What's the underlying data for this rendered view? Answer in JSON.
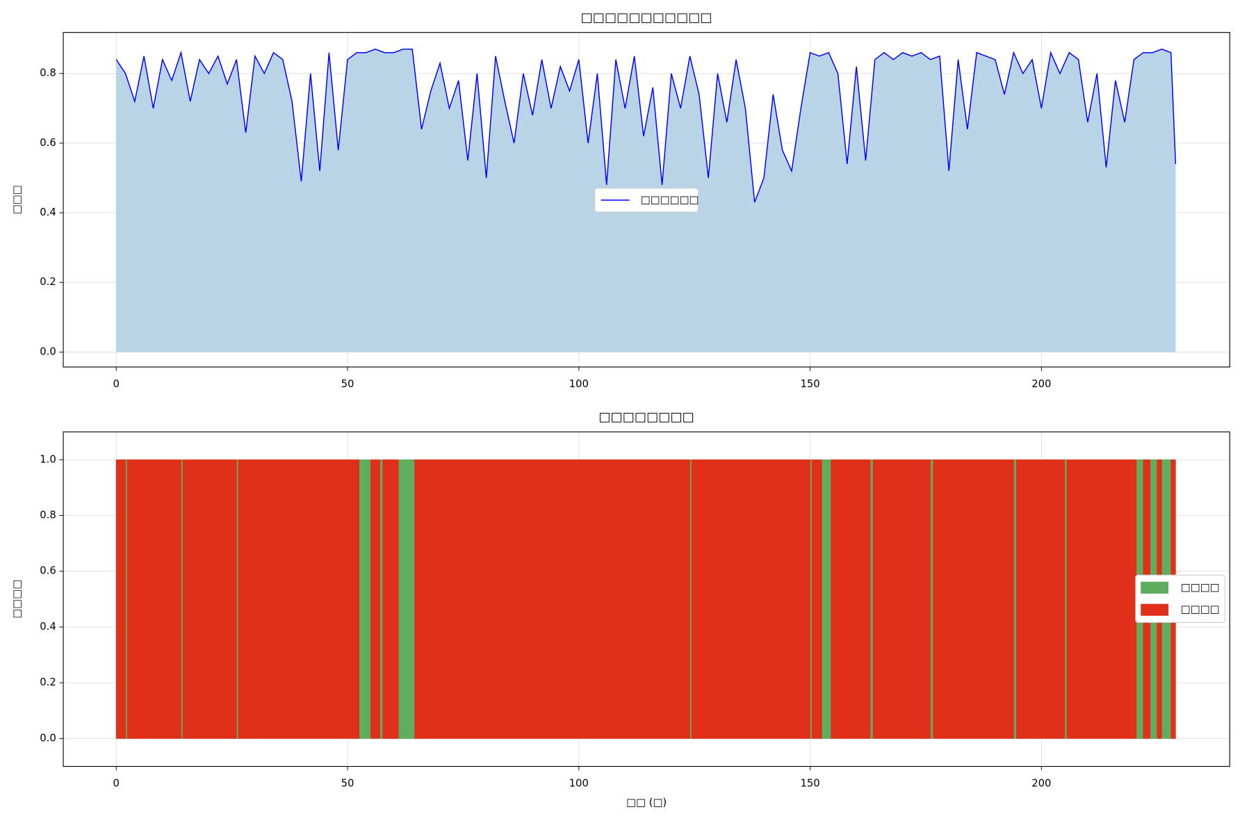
{
  "chart_data": [
    {
      "type": "area_line",
      "title": "□□□□□□□□□□□",
      "ylabel": "□□□",
      "x": [
        0,
        2,
        4,
        6,
        8,
        10,
        12,
        14,
        16,
        18,
        20,
        22,
        24,
        26,
        28,
        30,
        32,
        34,
        36,
        38,
        40,
        42,
        44,
        46,
        48,
        50,
        52,
        54,
        56,
        58,
        60,
        62,
        64,
        66,
        68,
        70,
        72,
        74,
        76,
        78,
        80,
        82,
        84,
        86,
        88,
        90,
        92,
        94,
        96,
        98,
        100,
        102,
        104,
        106,
        108,
        110,
        112,
        114,
        116,
        118,
        120,
        122,
        124,
        126,
        128,
        130,
        132,
        134,
        136,
        138,
        140,
        142,
        144,
        146,
        148,
        150,
        152,
        154,
        156,
        158,
        160,
        162,
        164,
        166,
        168,
        170,
        172,
        174,
        176,
        178,
        180,
        182,
        184,
        186,
        188,
        190,
        192,
        194,
        196,
        198,
        200,
        202,
        204,
        206,
        208,
        210,
        212,
        214,
        216,
        218,
        220,
        222,
        224,
        226,
        228,
        229
      ],
      "series": [
        {
          "name": "□□□□□□",
          "color": "#0000ff",
          "fill": "#b9d3e7",
          "values": [
            0.84,
            0.8,
            0.72,
            0.85,
            0.7,
            0.84,
            0.78,
            0.86,
            0.72,
            0.84,
            0.8,
            0.85,
            0.77,
            0.84,
            0.63,
            0.85,
            0.8,
            0.86,
            0.84,
            0.72,
            0.49,
            0.8,
            0.52,
            0.86,
            0.58,
            0.84,
            0.86,
            0.86,
            0.87,
            0.86,
            0.86,
            0.87,
            0.87,
            0.64,
            0.75,
            0.83,
            0.7,
            0.78,
            0.55,
            0.8,
            0.5,
            0.85,
            0.72,
            0.6,
            0.8,
            0.68,
            0.84,
            0.7,
            0.82,
            0.75,
            0.84,
            0.6,
            0.8,
            0.48,
            0.84,
            0.7,
            0.85,
            0.62,
            0.76,
            0.48,
            0.8,
            0.7,
            0.85,
            0.74,
            0.5,
            0.8,
            0.66,
            0.84,
            0.7,
            0.43,
            0.5,
            0.74,
            0.58,
            0.52,
            0.7,
            0.86,
            0.85,
            0.86,
            0.8,
            0.54,
            0.82,
            0.55,
            0.84,
            0.86,
            0.84,
            0.86,
            0.85,
            0.86,
            0.84,
            0.85,
            0.52,
            0.84,
            0.64,
            0.86,
            0.85,
            0.84,
            0.74,
            0.86,
            0.8,
            0.84,
            0.7,
            0.86,
            0.8,
            0.86,
            0.84,
            0.66,
            0.8,
            0.53,
            0.78,
            0.66,
            0.84,
            0.86,
            0.86,
            0.87,
            0.86,
            0.54
          ]
        }
      ],
      "xlim": [
        -11.45,
        240.7
      ],
      "xticks": [
        0,
        50,
        100,
        150,
        200
      ],
      "ylim": [
        -0.043,
        0.918
      ],
      "yticks": [
        {
          "value": 0,
          "label": "0.0"
        },
        0.2,
        0.4,
        0.6,
        0.8
      ],
      "grid": true,
      "legend": "center"
    },
    {
      "type": "state_bar",
      "title": "□□□□□□□□",
      "xlabel": "□□ (□)",
      "ylabel": "□□□□",
      "series": [
        {
          "name": "□□□□",
          "color": "#5fad5f",
          "bottom": 0,
          "top": 1,
          "intervals": [
            [
              2,
              2.4
            ],
            [
              14,
              14.4
            ],
            [
              26,
              26.4
            ],
            [
              52.5,
              55
            ],
            [
              57,
              57.6
            ],
            [
              61,
              64.5
            ],
            [
              124,
              124.4
            ],
            [
              150,
              150.4
            ],
            [
              152.5,
              154.5
            ],
            [
              163,
              163.6
            ],
            [
              176,
              176.6
            ],
            [
              194,
              194.6
            ],
            [
              205,
              205.5
            ],
            [
              220.5,
              222
            ],
            [
              223.5,
              225
            ],
            [
              226,
              228
            ]
          ]
        },
        {
          "name": "□□□□",
          "color": "#e0301a",
          "bottom": 0,
          "top": 1,
          "intervals": [
            [
              0,
              2
            ],
            [
              2.4,
              14
            ],
            [
              14.4,
              26
            ],
            [
              26.4,
              52.5
            ],
            [
              55,
              57
            ],
            [
              57.6,
              61
            ],
            [
              64.5,
              124
            ],
            [
              124.4,
              150
            ],
            [
              150.4,
              152.5
            ],
            [
              154.5,
              163
            ],
            [
              163.6,
              176
            ],
            [
              176.6,
              194
            ],
            [
              194.6,
              205
            ],
            [
              205.5,
              220.5
            ],
            [
              222,
              223.5
            ],
            [
              225,
              226
            ],
            [
              228,
              229
            ]
          ]
        }
      ],
      "xlim": [
        -11.45,
        240.7
      ],
      "xticks": [
        0,
        50,
        100,
        150,
        200
      ],
      "ylim": [
        -0.1,
        1.1
      ],
      "yticks": [
        {
          "value": 0,
          "label": "0.0"
        },
        0.2,
        0.4,
        0.6,
        0.8,
        {
          "value": 1,
          "label": "1.0"
        }
      ],
      "grid": true,
      "legend": "center right"
    }
  ]
}
